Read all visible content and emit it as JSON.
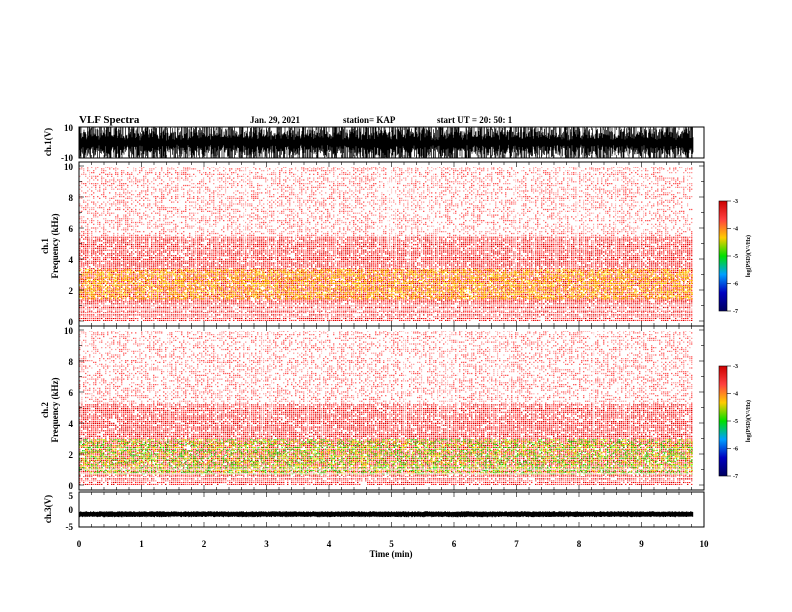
{
  "header": {
    "title": "VLF Spectra",
    "date": "Jan. 29, 2021",
    "station": "station= KAP",
    "start": "start  UT =   20: 50: 1"
  },
  "colors": {
    "background": "#ffffff",
    "waveform": "#000000",
    "spectrum_low": "#ff0000",
    "spectrum_mid": "#ffff00",
    "spectrum_high": "#00dd00"
  },
  "colorbar": {
    "label": "log(PSD)(V²/Hz)",
    "ticks": [
      "-3",
      "-4",
      "-5",
      "-6",
      "-7"
    ],
    "stops": [
      "#cc0000",
      "#ff4040",
      "#ffcc00",
      "#00e000",
      "#00a0ff",
      "#0000c0",
      "#000060"
    ]
  },
  "chart_data": [
    {
      "type": "line",
      "id": "ch1-waveform",
      "ylabel": "ch.1(V)",
      "yticks": [
        "10",
        "-10"
      ],
      "ylim": [
        -10,
        10
      ],
      "xlim": [
        0,
        10
      ]
    },
    {
      "type": "heatmap",
      "id": "ch1-spectrogram",
      "ylabel_top": "ch.1",
      "ylabel": "Frequency (kHz)",
      "yticks": [
        "0",
        "2",
        "4",
        "6",
        "8",
        "10"
      ],
      "ylim": [
        0,
        10
      ],
      "xlim": [
        0,
        9.83
      ],
      "intense_band_khz": [
        1.4,
        3.4
      ],
      "active_band_khz": [
        0,
        5.5
      ]
    },
    {
      "type": "heatmap",
      "id": "ch2-spectrogram",
      "ylabel_top": "ch.2",
      "ylabel": "Frequency (kHz)",
      "yticks": [
        "0",
        "2",
        "4",
        "6",
        "8",
        "10"
      ],
      "ylim": [
        0,
        10
      ],
      "xlim": [
        0,
        9.83
      ],
      "intense_band_khz": [
        0.7,
        3.0
      ],
      "active_band_khz": [
        0,
        5.2
      ]
    },
    {
      "type": "line",
      "id": "ch3-waveform",
      "ylabel": "ch.3(V)",
      "yticks": [
        "5",
        "0",
        "-5"
      ],
      "ylim": [
        -5,
        5
      ],
      "xlim": [
        0,
        10
      ],
      "level": -1
    }
  ],
  "xaxis": {
    "label": "Time (min)",
    "ticks": [
      "0",
      "1",
      "2",
      "3",
      "4",
      "5",
      "6",
      "7",
      "8",
      "9",
      "10"
    ],
    "range": [
      0,
      10
    ]
  }
}
